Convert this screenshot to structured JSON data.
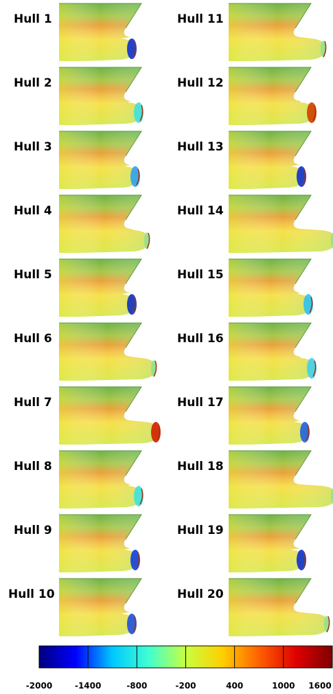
{
  "figure": {
    "hulls": [
      "Hull 1",
      "Hull 2",
      "Hull 3",
      "Hull 4",
      "Hull 5",
      "Hull 6",
      "Hull 7",
      "Hull 8",
      "Hull 9",
      "Hull 10",
      "Hull 11",
      "Hull 12",
      "Hull 13",
      "Hull 14",
      "Hull 15",
      "Hull 16",
      "Hull 17",
      "Hull 18",
      "Hull 19",
      "Hull 20"
    ],
    "colorbar": {
      "lim": [
        -2000,
        1600
      ],
      "ticks": [
        -2000,
        -1400,
        -800,
        -200,
        400,
        1000,
        1600
      ],
      "colors": [
        "#00007f",
        "#0000ff",
        "#00c8ff",
        "#40ffd0",
        "#c8ff40",
        "#ffd000",
        "#ff6000",
        "#e00000",
        "#7f0000"
      ]
    }
  }
}
